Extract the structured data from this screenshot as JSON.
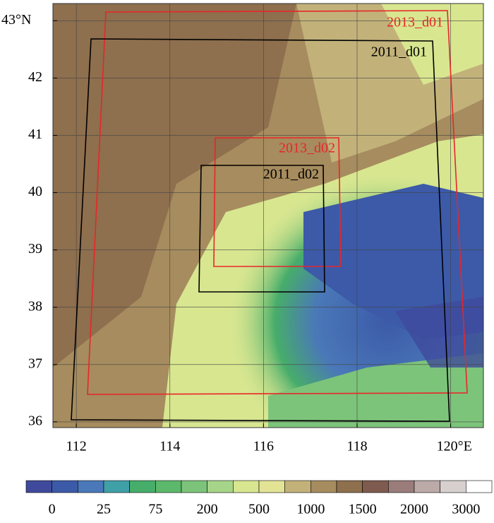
{
  "map": {
    "lon_ticks": [
      112,
      114,
      116,
      118,
      {
        "value": 120,
        "label": "120°E"
      }
    ],
    "lon_range": [
      111.5,
      120.7
    ],
    "lat_ticks": [
      36,
      37,
      38,
      39,
      40,
      41,
      42,
      {
        "value": 43,
        "label": "43°N"
      }
    ],
    "lat_range": [
      35.9,
      43.3
    ],
    "domains": [
      {
        "label": "2013_d01",
        "color": "#e8262a"
      },
      {
        "label": "2011_d01",
        "color": "#000000"
      },
      {
        "label": "2013_d02",
        "color": "#e8262a"
      },
      {
        "label": "2011_d02",
        "color": "#000000"
      }
    ]
  },
  "colorbar": {
    "colors": [
      "#3f4a9c",
      "#3c5aa8",
      "#4a78b8",
      "#3fa0a8",
      "#47ad6a",
      "#5cb86a",
      "#7cc47a",
      "#a6d58a",
      "#d8e690",
      "#e3e396",
      "#c2b27a",
      "#a68c5e",
      "#8e6f4e",
      "#7f5a4e",
      "#9a7c7a",
      "#bcaaa8",
      "#d8d0cf",
      "#ffffff"
    ],
    "ticks": [
      0,
      25,
      75,
      200,
      500,
      1000,
      1500,
      2000,
      3000
    ]
  }
}
